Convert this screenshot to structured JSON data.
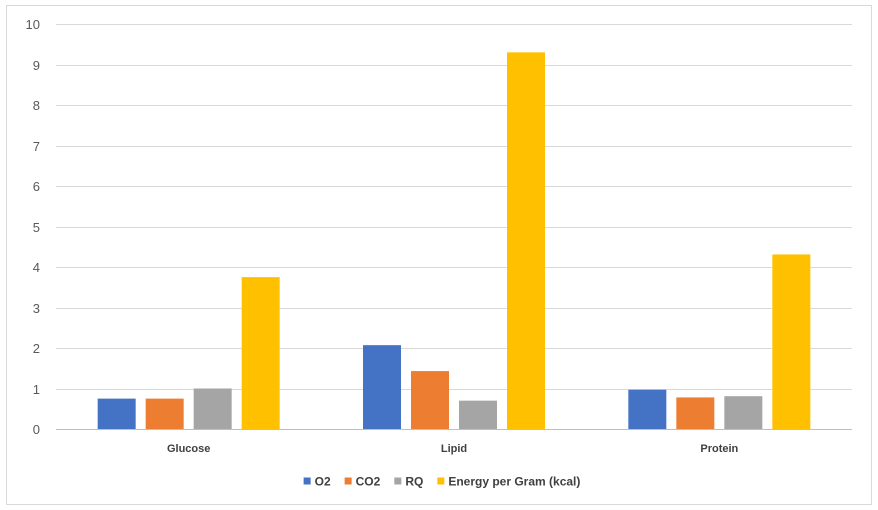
{
  "chart_data": {
    "type": "bar",
    "title": "",
    "xlabel": "",
    "ylabel": "",
    "categories": [
      "Glucose",
      "Lipid",
      "Protein"
    ],
    "series": [
      {
        "name": "O2",
        "color": "#4472c4",
        "values": [
          0.75,
          2.07,
          0.97
        ]
      },
      {
        "name": "CO2",
        "color": "#ed7d31",
        "values": [
          0.75,
          1.43,
          0.78
        ]
      },
      {
        "name": "RQ",
        "color": "#a5a5a5",
        "values": [
          1.0,
          0.7,
          0.81
        ]
      },
      {
        "name": "Energy per Gram (kcal)",
        "color": "#ffc000",
        "values": [
          3.75,
          9.3,
          4.31
        ]
      }
    ],
    "ylim": [
      0,
      10
    ],
    "yticks": [
      0,
      1,
      2,
      3,
      4,
      5,
      6,
      7,
      8,
      9,
      10
    ],
    "grid": true,
    "legend_position": "bottom"
  }
}
